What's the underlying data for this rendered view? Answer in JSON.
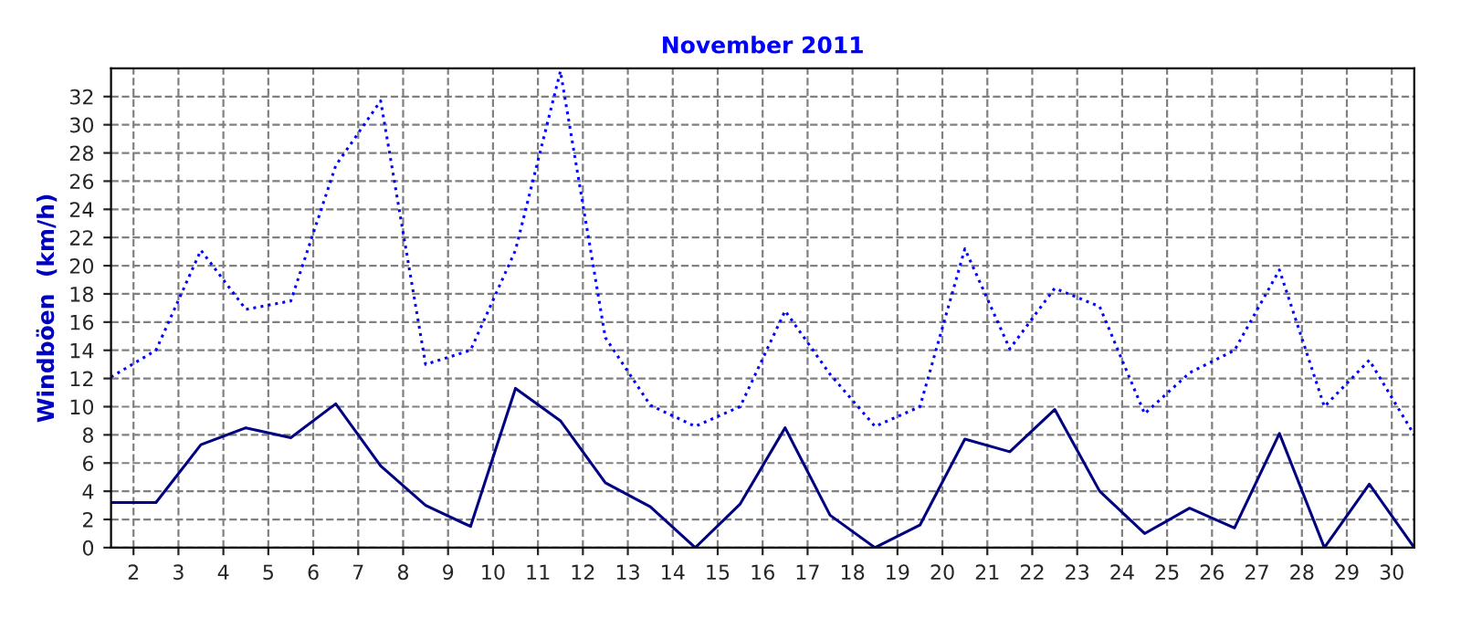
{
  "chart_data": {
    "type": "line",
    "title": "November 2011",
    "ylabel": "Windböen  (km/h)",
    "x": [
      1.5,
      2.5,
      3.5,
      4.5,
      5.5,
      6.5,
      7.5,
      8.5,
      9.5,
      10.5,
      11.5,
      12.5,
      13.5,
      14.5,
      15.5,
      16.5,
      17.5,
      18.5,
      19.5,
      20.5,
      21.5,
      22.5,
      23.5,
      24.5,
      25.5,
      26.5,
      27.5,
      28.5,
      29.5,
      30.5
    ],
    "series": [
      {
        "color": "#0000ff",
        "line_style": "dotted",
        "values": [
          12.1,
          14.0,
          21.1,
          16.9,
          17.5,
          27.1,
          31.7,
          13.0,
          14.0,
          21.1,
          33.8,
          14.9,
          10.1,
          8.6,
          10.0,
          16.8,
          12.3,
          8.6,
          10.0,
          21.2,
          14.1,
          18.4,
          17.1,
          9.5,
          12.4,
          14.0,
          19.7,
          10.0,
          13.3,
          8.0
        ]
      },
      {
        "color": "#000080",
        "line_style": "solid",
        "values": [
          3.2,
          3.2,
          7.3,
          8.5,
          7.8,
          10.2,
          5.8,
          3.0,
          1.5,
          11.3,
          9.0,
          4.6,
          2.9,
          0,
          3.1,
          8.5,
          2.3,
          0,
          1.6,
          7.7,
          6.8,
          9.8,
          4.0,
          1.0,
          2.8,
          1.4,
          8.1,
          0,
          4.5,
          0
        ]
      }
    ],
    "xlim": [
      1.5,
      30.5
    ],
    "xticks": [
      2,
      3,
      4,
      5,
      6,
      7,
      8,
      9,
      10,
      11,
      12,
      13,
      14,
      15,
      16,
      17,
      18,
      19,
      20,
      21,
      22,
      23,
      24,
      25,
      26,
      27,
      28,
      29,
      30
    ],
    "ylim": [
      0,
      34
    ],
    "yticks": [
      0,
      2,
      4,
      6,
      8,
      10,
      12,
      14,
      16,
      18,
      20,
      22,
      24,
      26,
      28,
      30,
      32
    ],
    "grid": true
  }
}
